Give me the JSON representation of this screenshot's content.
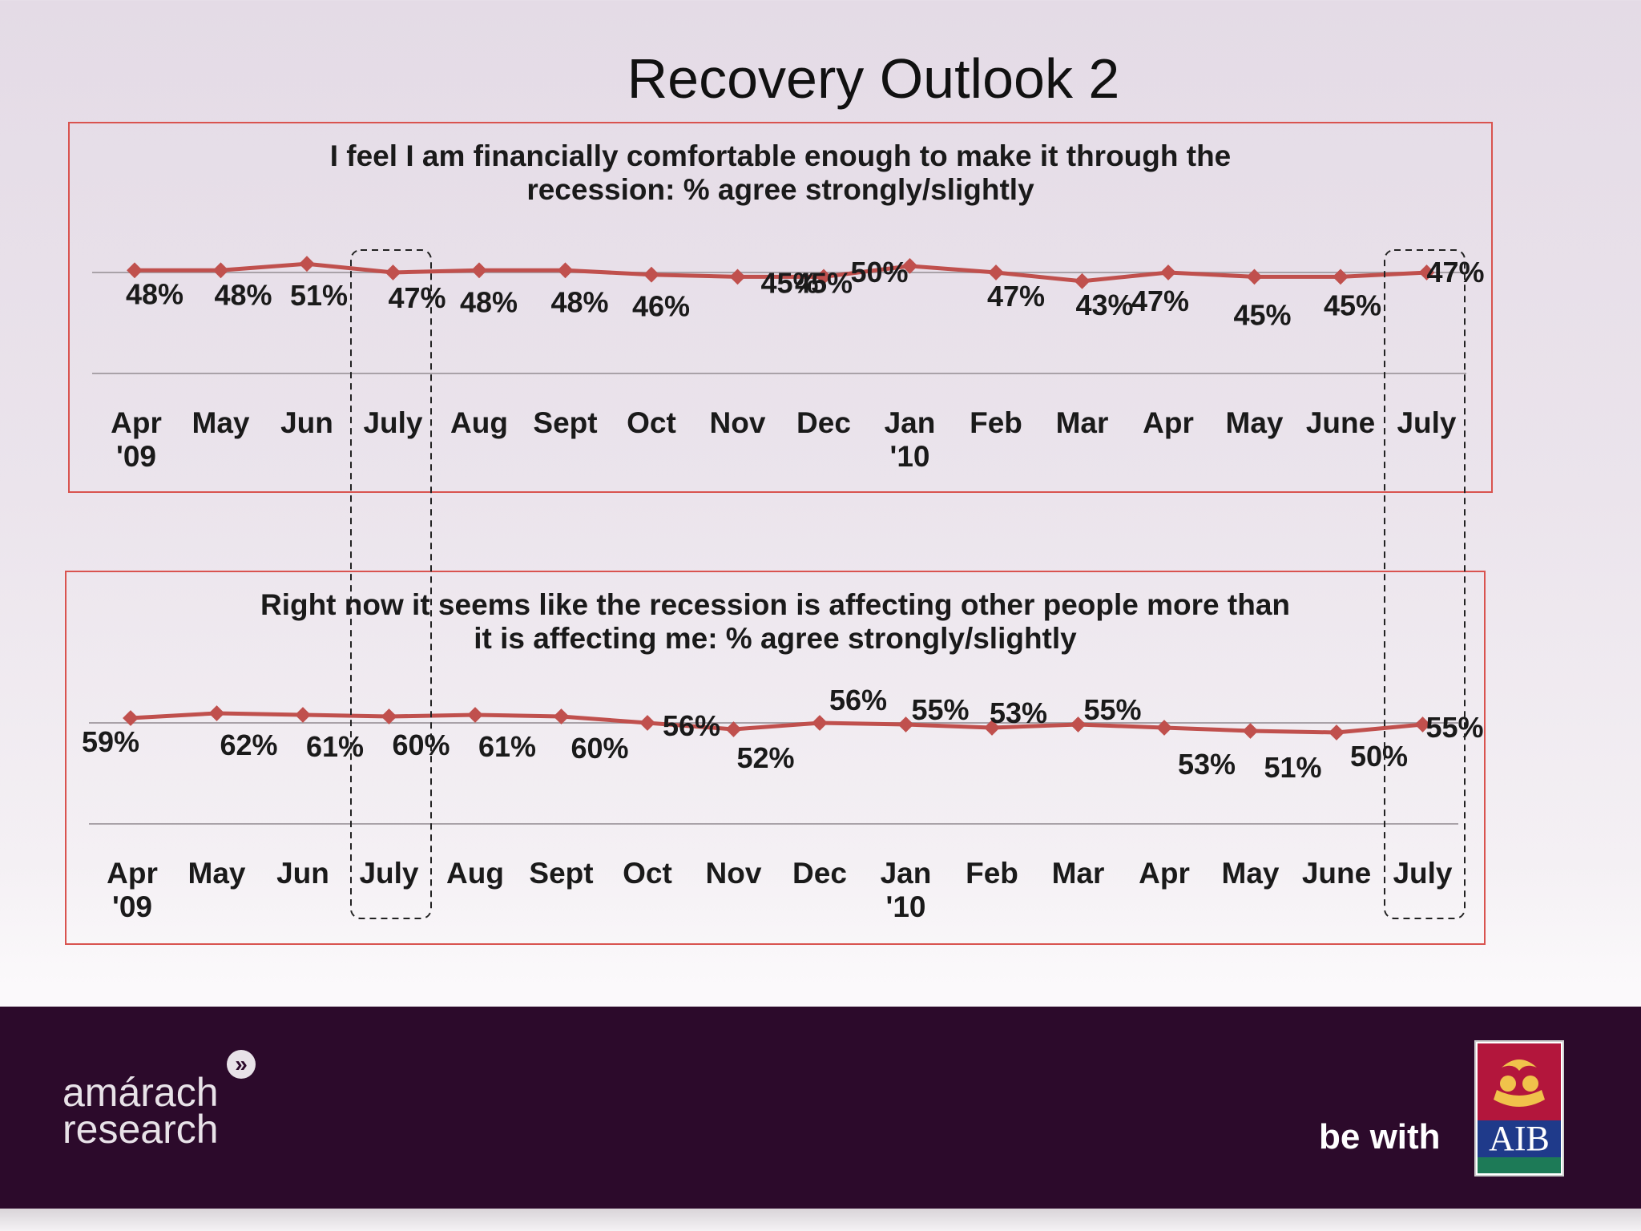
{
  "page": {
    "title": "Recovery Outlook 2"
  },
  "footer": {
    "brand_left_line1": "amárach",
    "brand_left_line2": "research",
    "tagline": "be with",
    "brand_right": "AIB"
  },
  "colors": {
    "series": "#c0504d",
    "frame": "#d9534f",
    "footer_bg": "#2c0a2b"
  },
  "icons": {
    "amarach": "chevron-right-circle-icon",
    "aib": "aib-crest-icon"
  },
  "chart_data": [
    {
      "type": "line",
      "title": "I feel I am financially comfortable enough to make it through the recession: % agree strongly/slightly",
      "title_lines": [
        "I feel I am financially comfortable enough to make it through the",
        "recession: % agree strongly/slightly"
      ],
      "categories": [
        "Apr '09",
        "May",
        "Jun",
        "July",
        "Aug",
        "Sept",
        "Oct",
        "Nov",
        "Dec",
        "Jan '10",
        "Feb",
        "Mar",
        "Apr",
        "May",
        "June",
        "July"
      ],
      "category_lines": [
        [
          "Apr",
          "'09"
        ],
        [
          "May"
        ],
        [
          "Jun"
        ],
        [
          "July"
        ],
        [
          "Aug"
        ],
        [
          "Sept"
        ],
        [
          "Oct"
        ],
        [
          "Nov"
        ],
        [
          "Dec"
        ],
        [
          "Jan",
          "'10"
        ],
        [
          "Feb"
        ],
        [
          "Mar"
        ],
        [
          "Apr"
        ],
        [
          "May"
        ],
        [
          "June"
        ],
        [
          "July"
        ]
      ],
      "series": [
        {
          "values": [
            48,
            48,
            51,
            47,
            48,
            48,
            46,
            45,
            45,
            50,
            47,
            43,
            47,
            45,
            45,
            47
          ]
        }
      ],
      "value_labels": [
        "48%",
        "48%",
        "51%",
        "47%",
        "48%",
        "48%",
        "46%",
        "45%",
        "45%",
        "50%",
        "47%",
        "43%",
        "47%",
        "45%",
        "45%",
        "47%"
      ],
      "highlighted_categories": [
        3,
        15
      ],
      "legend": "none",
      "grid": true
    },
    {
      "type": "line",
      "title": "Right now it seems like the recession is affecting other people more than it is affecting me: % agree strongly/slightly",
      "title_lines": [
        "Right now it seems like the recession is affecting other people more than",
        "it is affecting me: % agree strongly/slightly"
      ],
      "categories": [
        "Apr '09",
        "May",
        "Jun",
        "July",
        "Aug",
        "Sept",
        "Oct",
        "Nov",
        "Dec",
        "Jan '10",
        "Feb",
        "Mar",
        "Apr",
        "May",
        "June",
        "July"
      ],
      "category_lines": [
        [
          "Apr",
          "'09"
        ],
        [
          "May"
        ],
        [
          "Jun"
        ],
        [
          "July"
        ],
        [
          "Aug"
        ],
        [
          "Sept"
        ],
        [
          "Oct"
        ],
        [
          "Nov"
        ],
        [
          "Dec"
        ],
        [
          "Jan",
          "'10"
        ],
        [
          "Feb"
        ],
        [
          "Mar"
        ],
        [
          "Apr"
        ],
        [
          "May"
        ],
        [
          "June"
        ],
        [
          "July"
        ]
      ],
      "series": [
        {
          "values": [
            59,
            62,
            61,
            60,
            61,
            60,
            56,
            52,
            56,
            55,
            53,
            55,
            53,
            51,
            50,
            55
          ]
        }
      ],
      "value_labels": [
        "59%",
        "62%",
        "61%",
        "60%",
        "61%",
        "60%",
        "56%",
        "52%",
        "56%",
        "55%",
        "53%",
        "55%",
        "53%",
        "51%",
        "50%",
        "55%"
      ],
      "highlighted_categories": [
        3,
        15
      ],
      "legend": "none",
      "grid": true
    }
  ]
}
